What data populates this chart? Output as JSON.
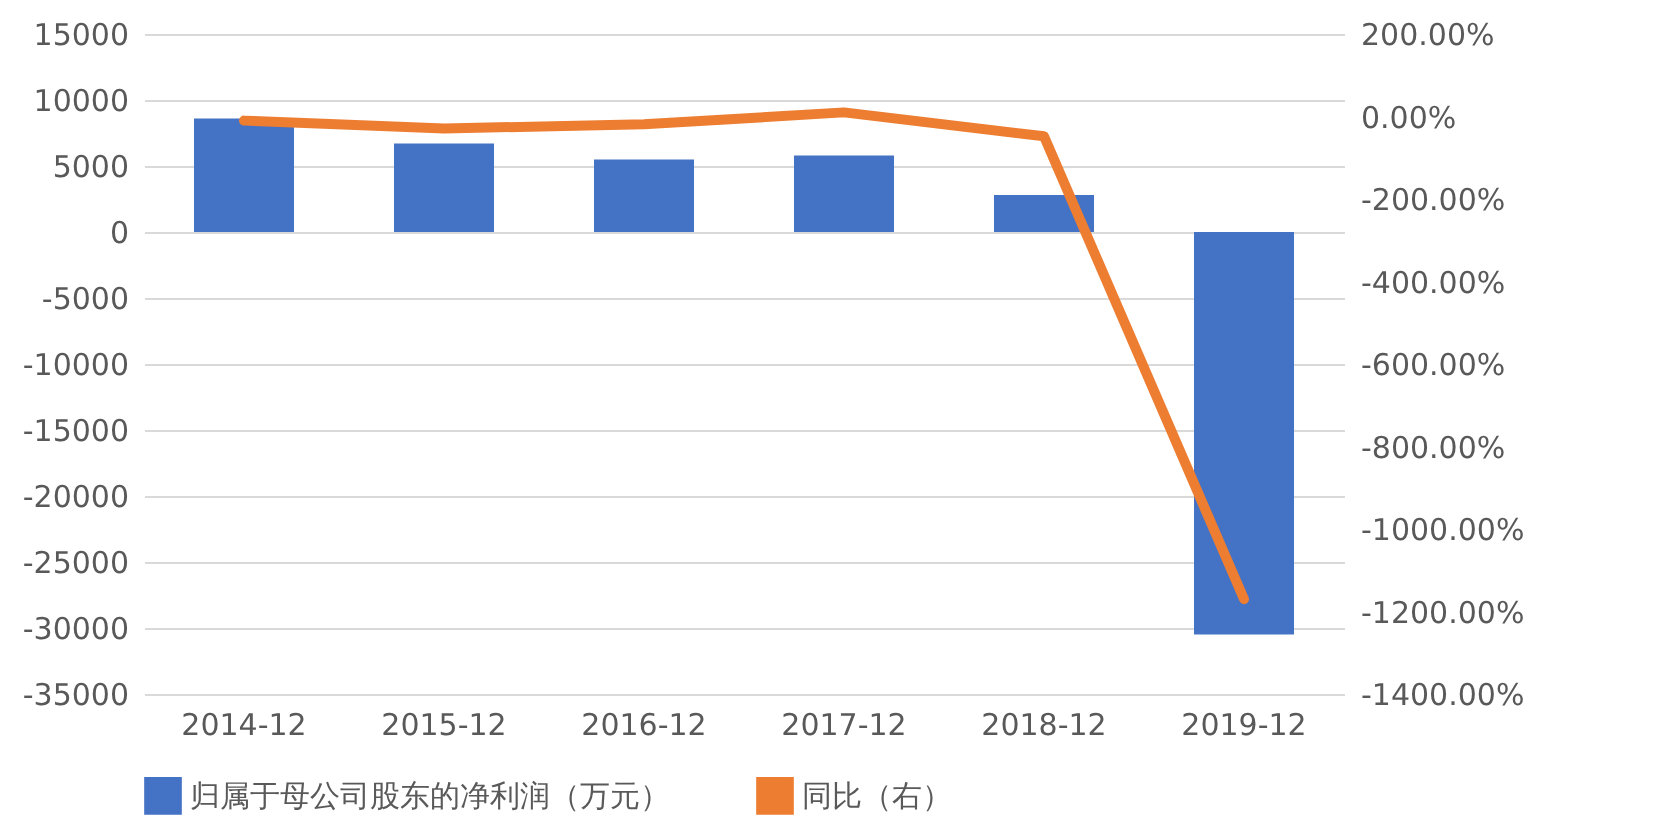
{
  "chart_data": {
    "type": "bar",
    "categories": [
      "2014-12",
      "2015-12",
      "2016-12",
      "2017-12",
      "2018-12",
      "2019-12"
    ],
    "series": [
      {
        "name": "归属于母公司股东的净利润（万元）",
        "color": "#4472c4",
        "values": [
          8600,
          6700,
          5500,
          5800,
          2800,
          -30500
        ]
      },
      {
        "name": "同比（右）",
        "type": "line",
        "axis": "y2",
        "color": "#ed7d31",
        "values": [
          -10,
          -29,
          -19,
          10,
          -48,
          -1170
        ]
      }
    ],
    "ylim": [
      -35000,
      15000
    ],
    "yticks": [
      15000,
      10000,
      5000,
      0,
      -5000,
      -10000,
      -15000,
      -20000,
      -25000,
      -30000,
      -35000
    ],
    "y2lim": [
      -1400,
      200
    ],
    "y2ticks": [
      {
        "value": 200,
        "label": "200.00%"
      },
      {
        "value": 0,
        "label": "0.00%"
      },
      {
        "value": -200,
        "label": "-200.00%"
      },
      {
        "value": -400,
        "label": "-400.00%"
      },
      {
        "value": -600,
        "label": "-600.00%"
      },
      {
        "value": -800,
        "label": "-800.00%"
      },
      {
        "value": -1000,
        "label": "-1000.00%"
      },
      {
        "value": -1200,
        "label": "-1200.00%"
      },
      {
        "value": -1400,
        "label": "-1400.00%"
      }
    ],
    "grid": "y",
    "legend": "bottom"
  }
}
